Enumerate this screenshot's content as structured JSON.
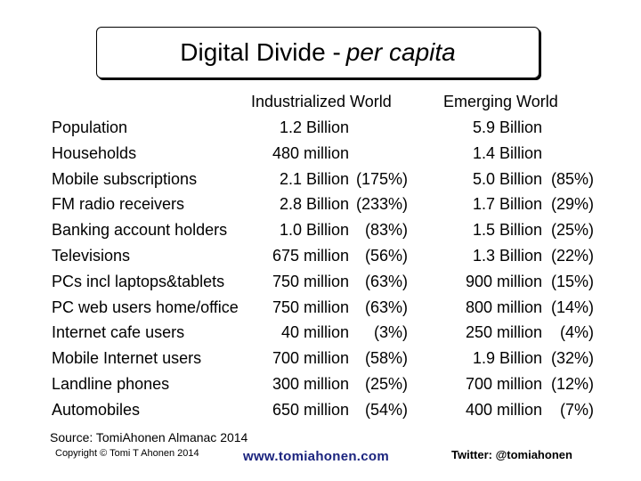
{
  "title": {
    "main": "Digital Divide -",
    "italic": "per capita"
  },
  "headers": {
    "industrialized": "Industrialized World",
    "emerging": "Emerging World"
  },
  "rows": [
    {
      "label": "Population",
      "ind_val": "1.2 Billion",
      "ind_pct": "",
      "emg_val": "5.9 Billion",
      "emg_pct": ""
    },
    {
      "label": "Households",
      "ind_val": "480 million",
      "ind_pct": "",
      "emg_val": "1.4 Billion",
      "emg_pct": ""
    },
    {
      "label": "Mobile subscriptions",
      "ind_val": "2.1 Billion",
      "ind_pct": "(175%)",
      "emg_val": "5.0 Billion",
      "emg_pct": "(85%)"
    },
    {
      "label": "FM radio receivers",
      "ind_val": "2.8 Billion",
      "ind_pct": "(233%)",
      "emg_val": "1.7 Billion",
      "emg_pct": "(29%)"
    },
    {
      "label": "Banking account holders",
      "ind_val": "1.0 Billion",
      "ind_pct": "(83%)",
      "emg_val": "1.5 Billion",
      "emg_pct": "(25%)"
    },
    {
      "label": "Televisions",
      "ind_val": "675 million",
      "ind_pct": "(56%)",
      "emg_val": "1.3 Billion",
      "emg_pct": "(22%)"
    },
    {
      "label": "PCs incl laptops&tablets",
      "ind_val": "750 million",
      "ind_pct": "(63%)",
      "emg_val": "900 million",
      "emg_pct": "(15%)"
    },
    {
      "label": "PC web users home/office",
      "ind_val": "750 million",
      "ind_pct": "(63%)",
      "emg_val": "800 million",
      "emg_pct": "(14%)"
    },
    {
      "label": "Internet cafe users",
      "ind_val": "40 million",
      "ind_pct": "(3%)",
      "emg_val": "250 million",
      "emg_pct": "(4%)"
    },
    {
      "label": "Mobile Internet users",
      "ind_val": "700 million",
      "ind_pct": "(58%)",
      "emg_val": "1.9 Billion",
      "emg_pct": "(32%)"
    },
    {
      "label": "Landline phones",
      "ind_val": "300 million",
      "ind_pct": "(25%)",
      "emg_val": "700 million",
      "emg_pct": "(12%)"
    },
    {
      "label": "Automobiles",
      "ind_val": "650 million",
      "ind_pct": "(54%)",
      "emg_val": "400 million",
      "emg_pct": "(7%)"
    }
  ],
  "footer": {
    "source": "Source: TomiAhonen Almanac 2014",
    "copyright": "Copyright © Tomi T Ahonen 2014",
    "url": "www.tomiahonen.com",
    "twitter": "Twitter: @tomiahonen"
  }
}
